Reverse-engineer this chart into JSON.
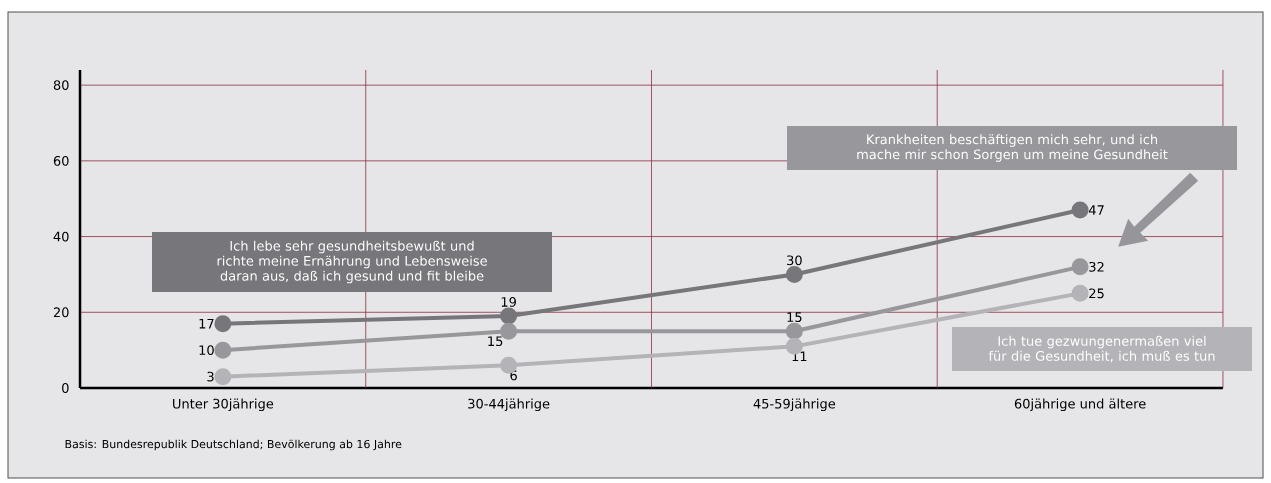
{
  "chart_data": {
    "type": "line",
    "categories": [
      "Unter 30jährige",
      "30-44jährige",
      "45-59jährige",
      "60jährige und ältere"
    ],
    "series": [
      {
        "name": "Ich lebe sehr gesundheitsbewußt und richte meine Ernährung und Lebensweise daran aus, daß ich gesund und fit bleibe",
        "color": "#77777b",
        "values": [
          17,
          19,
          30,
          47
        ]
      },
      {
        "name": "Krankheiten beschäftigen mich sehr, und ich mache mir schon Sorgen um meine Gesundheit",
        "color": "#98989c",
        "values": [
          10,
          15,
          15,
          32
        ]
      },
      {
        "name": "Ich tue gezwungenermaßen viel für die Gesundheit, ich muß es tun",
        "color": "#b4b4b8",
        "values": [
          3,
          6,
          11,
          25
        ]
      }
    ],
    "ylim": [
      0,
      84
    ],
    "yticks": [
      0,
      20,
      40,
      60,
      80
    ],
    "grid": true,
    "marker": "circle",
    "data_labels": true,
    "annotations": [
      "Basis: Bundesrepublik Deutschland; Bevölkerung ab 16 Jahre"
    ]
  }
}
